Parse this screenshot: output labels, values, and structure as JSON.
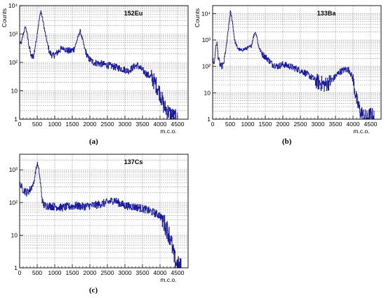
{
  "colors": {
    "trace": "#1a1a9e",
    "grid": "#8a8a8a",
    "axis": "#000000"
  },
  "chart_data": [
    {
      "id": "a",
      "type": "line",
      "title": "152Eu",
      "caption": "(a)",
      "xlabel": "m.c.o.",
      "ylabel": "Counts",
      "xlim": [
        0,
        4800
      ],
      "ylim": [
        1,
        10000
      ],
      "yscale": "log",
      "grid": true,
      "x_ticks": [
        0,
        500,
        1000,
        1500,
        2000,
        2500,
        3000,
        3500,
        4000,
        4500
      ],
      "y_ticks": [
        "1",
        "10",
        "10²",
        "10³",
        "10⁴"
      ],
      "series": [
        {
          "x": [
            0,
            40,
            100,
            160,
            200,
            260,
            330,
            400,
            470,
            540,
            600,
            640,
            700,
            780,
            850,
            950,
            1050,
            1150,
            1250,
            1350,
            1450,
            1550,
            1650,
            1720,
            1780,
            1850,
            1950,
            2100,
            2300,
            2500,
            2700,
            2900,
            3100,
            3250,
            3350,
            3450,
            3600,
            3750,
            3900,
            4000,
            4100,
            4200,
            4300,
            4400,
            4500
          ],
          "y": [
            500,
            450,
            1000,
            1800,
            1200,
            400,
            150,
            180,
            600,
            2500,
            6500,
            4000,
            1500,
            500,
            220,
            170,
            210,
            280,
            320,
            260,
            250,
            300,
            700,
            1300,
            700,
            300,
            140,
            100,
            90,
            80,
            70,
            60,
            50,
            70,
            80,
            60,
            40,
            30,
            15,
            8,
            3,
            2,
            1.5,
            1.2,
            1
          ]
        }
      ]
    },
    {
      "id": "b",
      "type": "line",
      "title": "133Ba",
      "caption": "(b)",
      "xlabel": "m.c.o.",
      "ylabel": "Counts",
      "xlim": [
        0,
        4800
      ],
      "ylim": [
        1,
        20000
      ],
      "yscale": "log",
      "grid": true,
      "x_ticks": [
        0,
        500,
        1000,
        1500,
        2000,
        2500,
        3000,
        3500,
        4000,
        4500
      ],
      "y_ticks": [
        "1",
        "10",
        "10²",
        "10³",
        "10⁴"
      ],
      "series": [
        {
          "x": [
            0,
            40,
            80,
            120,
            160,
            220,
            300,
            380,
            450,
            500,
            560,
            620,
            700,
            800,
            900,
            1000,
            1100,
            1150,
            1200,
            1250,
            1300,
            1400,
            1550,
            1700,
            1850,
            2000,
            2200,
            2400,
            2600,
            2800,
            3000,
            3200,
            3400,
            3600,
            3800,
            3900,
            4000,
            4100,
            4200,
            4300,
            4400,
            4500,
            4600
          ],
          "y": [
            200,
            120,
            500,
            800,
            200,
            100,
            110,
            500,
            3000,
            12000,
            5000,
            1000,
            500,
            400,
            450,
            500,
            600,
            1200,
            2000,
            1500,
            600,
            300,
            200,
            120,
            100,
            120,
            100,
            80,
            60,
            40,
            25,
            20,
            30,
            60,
            80,
            70,
            30,
            5,
            2,
            1.3,
            1.1,
            1.5,
            1.2
          ]
        }
      ]
    },
    {
      "id": "c",
      "type": "line",
      "title": "137Cs",
      "caption": "(c)",
      "xlabel": "m.c.o.",
      "ylabel": "",
      "xlim": [
        0,
        4800
      ],
      "ylim": [
        1,
        3000
      ],
      "yscale": "log",
      "grid": true,
      "x_ticks": [
        0,
        500,
        1000,
        1500,
        2000,
        2500,
        3000,
        3500,
        4000,
        4500
      ],
      "y_ticks": [
        "1",
        "10",
        "10²",
        "10³"
      ],
      "series": [
        {
          "x": [
            0,
            40,
            100,
            200,
            300,
            400,
            450,
            500,
            550,
            600,
            650,
            700,
            800,
            1000,
            1200,
            1400,
            1600,
            1800,
            2000,
            2200,
            2400,
            2600,
            2700,
            2800,
            3000,
            3200,
            3400,
            3600,
            3800,
            4000,
            4100,
            4200,
            4300,
            4350,
            4400,
            4450,
            4500,
            4600
          ],
          "y": [
            400,
            300,
            250,
            200,
            250,
            400,
            900,
            1600,
            900,
            300,
            100,
            80,
            80,
            75,
            70,
            75,
            80,
            75,
            80,
            85,
            95,
            110,
            120,
            100,
            80,
            75,
            70,
            60,
            50,
            40,
            25,
            15,
            8,
            4,
            2,
            1.5,
            1.2,
            1
          ]
        }
      ]
    }
  ]
}
